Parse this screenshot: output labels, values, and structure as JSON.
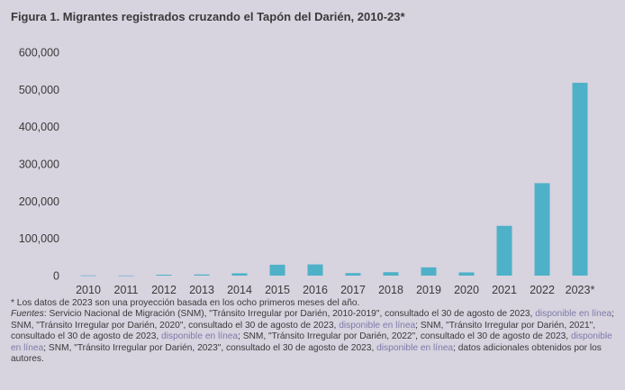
{
  "title": "Figura 1. Migrantes registrados cruzando el Tapón del Darién, 2010-23*",
  "colors": {
    "bar": "#4fb1c8",
    "background": "#d7d3df",
    "link": "#7d7aa8",
    "text": "#3a3a3a"
  },
  "chart_data": {
    "type": "bar",
    "title": "Figura 1. Migrantes registrados cruzando el Tapón del Darién, 2010-23*",
    "categories": [
      "2010",
      "2011",
      "2012",
      "2013",
      "2014",
      "2015",
      "2016",
      "2017",
      "2018",
      "2019",
      "2020",
      "2021",
      "2022",
      "2023*"
    ],
    "values": [
      559,
      283,
      2426,
      3051,
      6175,
      29289,
      30055,
      6780,
      9222,
      22102,
      8594,
      133726,
      248284,
      518000
    ],
    "ylim": [
      0,
      600000
    ],
    "yticks": [
      0,
      100000,
      200000,
      300000,
      400000,
      500000,
      600000
    ],
    "ytick_labels": [
      "0",
      "100,000",
      "200,000",
      "300,000",
      "400,000",
      "500,000",
      "600,000"
    ],
    "xlabel": "",
    "ylabel": "",
    "grid": false,
    "legend": "none"
  },
  "footnotes": {
    "asterisk": "* Los datos de 2023 son una proyección basada en los ocho primeros meses del año.",
    "sources_label": "Fuentes",
    "s1": ": Servicio Nacional de Migración (SNM), \"Tránsito Irregular por Darién, 2010-2019\", consultado el 30 de agosto de 2023, ",
    "link1": "disponible en línea",
    "s2": "; SNM, \"Tránsito Irregular por Darién, 2020\", consultado el 30 de agosto de 2023, ",
    "link2": "disponible en línea",
    "s3": "; SNM, \"Tránsito Irregular por Darién, 2021\", consultado el 30 de agosto de 2023, ",
    "link3": "disponible en línea",
    "s4": "; SNM, \"Tránsito Irregular por Darién, 2022\", consultado el 30 de agosto de 2023, ",
    "link4": "disponible en línea",
    "s5": "; SNM, \"Tránsito Irregular por Darién, 2023\", consultado el 30 de agosto de 2023, ",
    "link5": "disponible en línea",
    "s6": "; datos adicionales obtenidos por los autores."
  }
}
